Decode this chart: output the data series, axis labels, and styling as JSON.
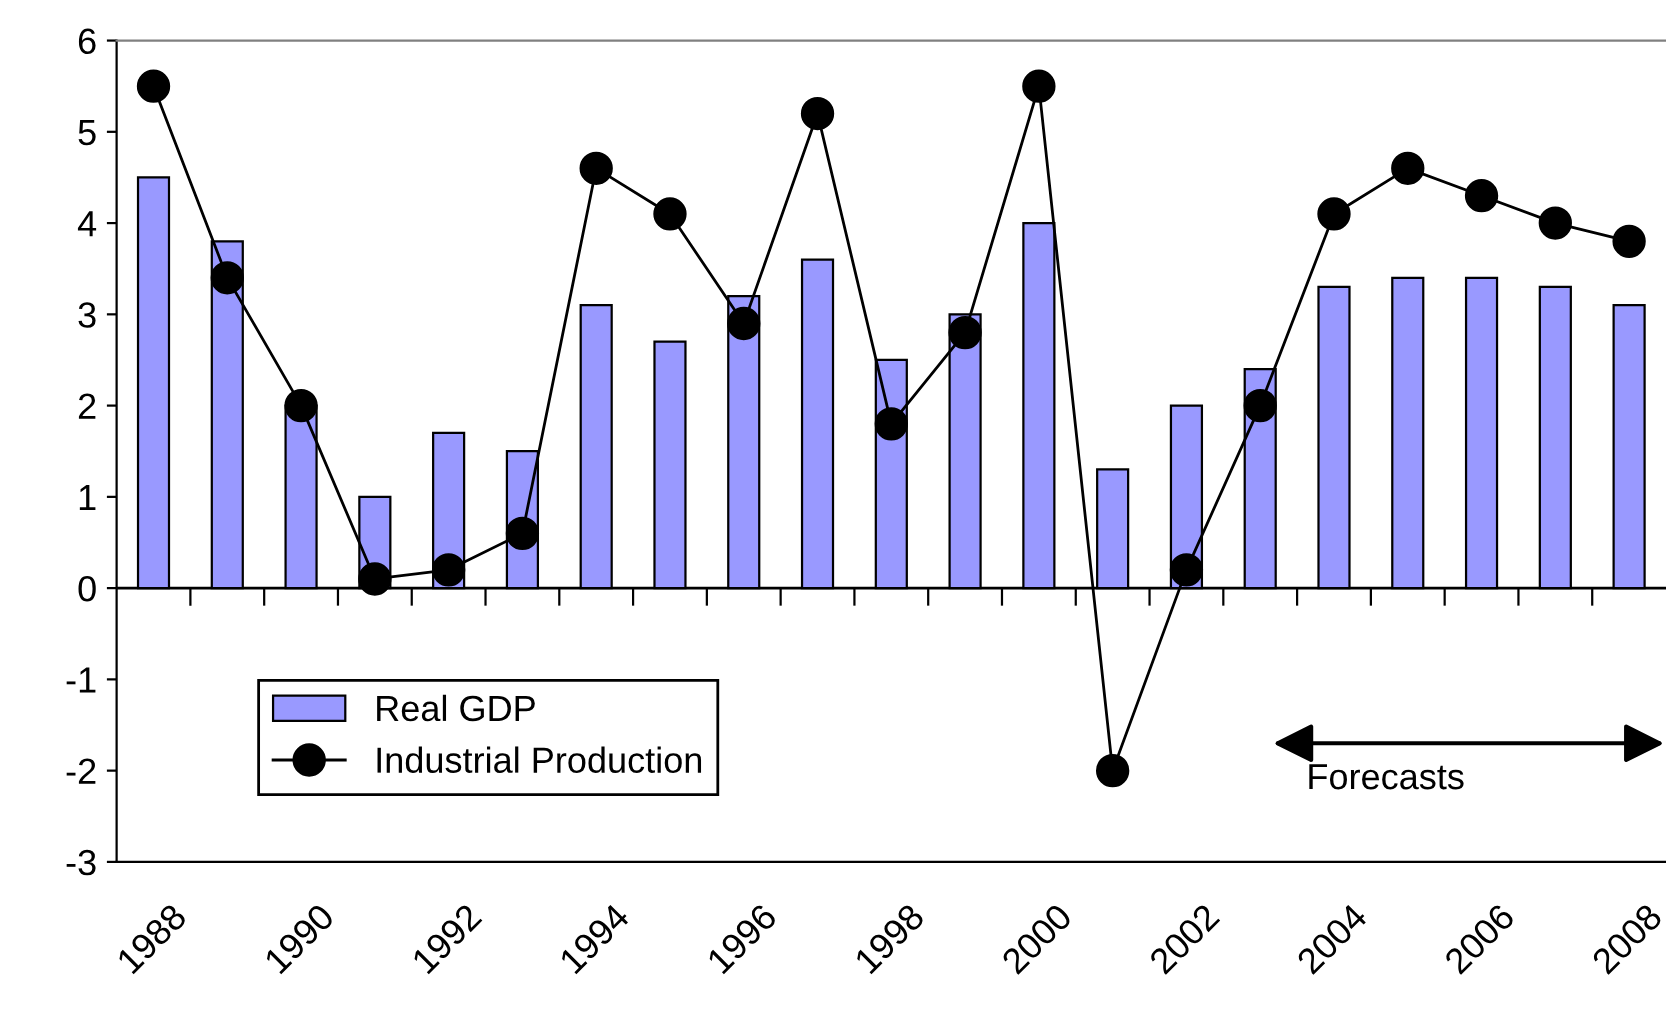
{
  "chart_data": {
    "type": "bar",
    "categories": [
      "1988",
      null,
      "1990",
      null,
      "1992",
      null,
      "1994",
      null,
      "1996",
      null,
      "1998",
      null,
      "2000",
      null,
      "2002",
      null,
      "2004",
      null,
      "2006",
      null,
      "2008"
    ],
    "series": [
      {
        "name": "Real GDP",
        "color": "#9999ff",
        "values": [
          4.5,
          3.8,
          2.0,
          1.0,
          1.7,
          1.5,
          3.1,
          2.7,
          3.2,
          3.6,
          2.5,
          3.0,
          4.0,
          1.3,
          2.0,
          2.4,
          3.3,
          3.4,
          3.4,
          3.3,
          3.1
        ]
      },
      {
        "name": "Industrial Production",
        "type": "line",
        "color": "#000000",
        "marker": "circle",
        "values": [
          5.5,
          3.4,
          2.0,
          0.1,
          0.2,
          0.6,
          4.6,
          4.1,
          2.9,
          5.2,
          1.8,
          2.8,
          5.5,
          -2.0,
          0.2,
          2.0,
          4.1,
          4.6,
          4.3,
          4.0,
          3.8
        ]
      }
    ],
    "ylim": [
      -3,
      6
    ],
    "yticks": [
      -3,
      -2,
      -1,
      0,
      1,
      2,
      3,
      4,
      5,
      6
    ],
    "ref_lines": [
      {
        "axis": "y",
        "value": 0,
        "color": "#000000"
      }
    ],
    "annotations": [
      "Forecasts"
    ],
    "legend": "bottom left",
    "grid": false
  }
}
